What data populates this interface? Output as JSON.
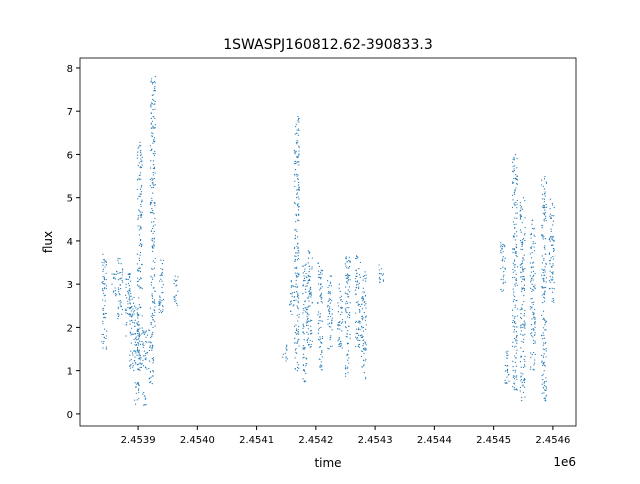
{
  "chart_data": {
    "type": "scatter",
    "title": "1SWASPJ160812.62-390833.3",
    "xlabel": "time",
    "ylabel": "flux",
    "x_offset_label": "1e6",
    "xlim": [
      2453802,
      2454639
    ],
    "ylim": [
      -0.28,
      8.23
    ],
    "xticks": [
      2453900,
      2454000,
      2454100,
      2454200,
      2454300,
      2454400,
      2454500,
      2454600
    ],
    "xtick_labels": [
      "2.4539",
      "2.4540",
      "2.4541",
      "2.4542",
      "2.4543",
      "2.4544",
      "2.4545",
      "2.4546"
    ],
    "yticks": [
      0,
      1,
      2,
      3,
      4,
      5,
      6,
      7,
      8
    ],
    "ytick_labels": [
      "0",
      "1",
      "2",
      "3",
      "4",
      "5",
      "6",
      "7",
      "8"
    ],
    "grid": false,
    "marker_color": "#1f77b4",
    "point_clusters_note_columns": [
      "time",
      "flux_min",
      "flux_max"
    ],
    "clusters": [
      [
        2453843,
        1.5,
        3.7
      ],
      [
        2453860,
        2.7,
        3.3
      ],
      [
        2453870,
        2.2,
        3.6
      ],
      [
        2453883,
        1.8,
        3.3
      ],
      [
        2453890,
        1.0,
        2.8
      ],
      [
        2453898,
        0.2,
        0.8
      ],
      [
        2453898,
        1.0,
        2.5
      ],
      [
        2453903,
        1.0,
        6.3
      ],
      [
        2453912,
        0.2,
        0.5
      ],
      [
        2453912,
        1.0,
        2.0
      ],
      [
        2453922,
        0.7,
        2.0
      ],
      [
        2453925,
        2.0,
        7.8
      ],
      [
        2453939,
        2.3,
        3.6
      ],
      [
        2453964,
        2.5,
        3.2
      ],
      [
        2454148,
        1.2,
        1.6
      ],
      [
        2454160,
        2.3,
        3.1
      ],
      [
        2454168,
        1.0,
        6.9
      ],
      [
        2454182,
        0.7,
        3.5
      ],
      [
        2454190,
        1.5,
        3.8
      ],
      [
        2454207,
        1.0,
        3.5
      ],
      [
        2454224,
        1.5,
        3.2
      ],
      [
        2454241,
        1.5,
        3.0
      ],
      [
        2454254,
        0.8,
        3.7
      ],
      [
        2454271,
        1.5,
        3.7
      ],
      [
        2454281,
        0.8,
        3.3
      ],
      [
        2454311,
        3.0,
        3.5
      ],
      [
        2454516,
        2.8,
        4.0
      ],
      [
        2454522,
        0.7,
        1.5
      ],
      [
        2454536,
        0.5,
        6.0
      ],
      [
        2454549,
        0.3,
        5.0
      ],
      [
        2454566,
        1.0,
        4.5
      ],
      [
        2454585,
        0.3,
        5.5
      ],
      [
        2454598,
        2.5,
        5.0
      ]
    ]
  }
}
